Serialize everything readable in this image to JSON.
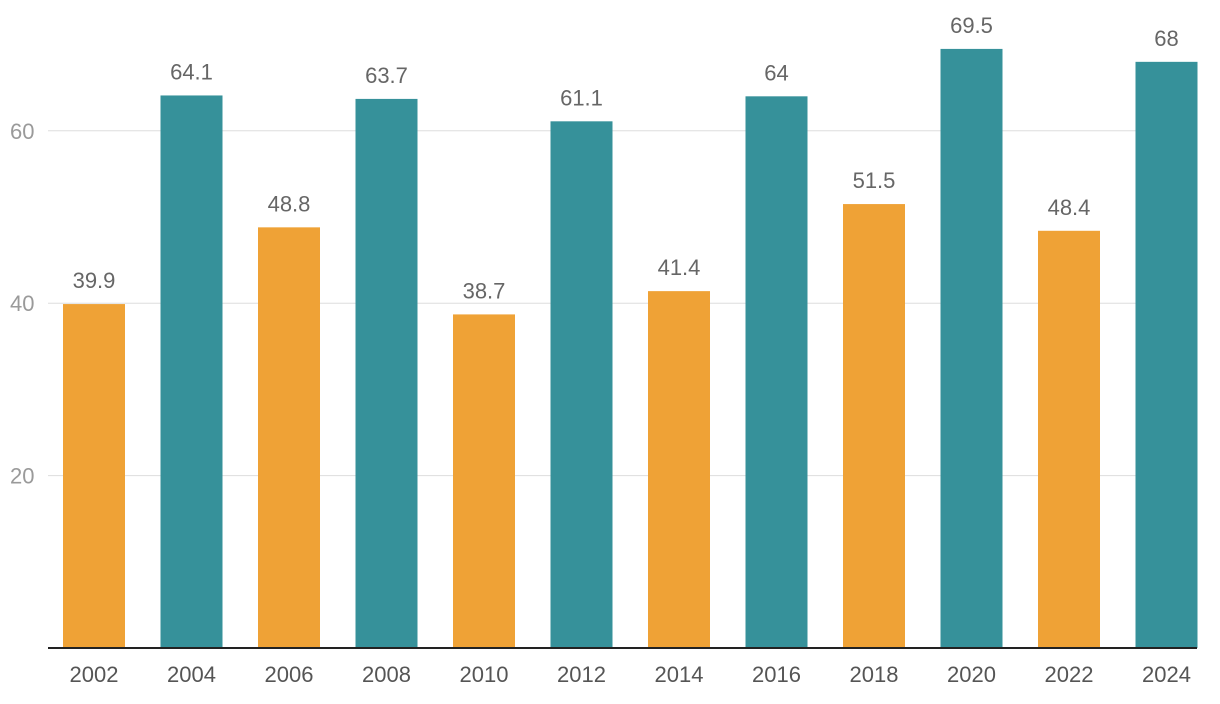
{
  "chart_data": {
    "type": "bar",
    "categories": [
      "2002",
      "2004",
      "2006",
      "2008",
      "2010",
      "2012",
      "2014",
      "2016",
      "2018",
      "2020",
      "2022",
      "2024"
    ],
    "values": [
      39.9,
      64.1,
      48.8,
      63.7,
      38.7,
      61.1,
      41.4,
      64,
      51.5,
      69.5,
      48.4,
      68
    ],
    "value_labels": [
      "39.9",
      "64.1",
      "48.8",
      "63.7",
      "38.7",
      "61.1",
      "41.4",
      "64",
      "51.5",
      "69.5",
      "48.4",
      "68"
    ],
    "bar_colors": [
      "#efa236",
      "#36919a",
      "#efa236",
      "#36919a",
      "#efa236",
      "#36919a",
      "#efa236",
      "#36919a",
      "#efa236",
      "#36919a",
      "#efa236",
      "#36919a"
    ],
    "y_ticks": [
      20,
      40,
      60
    ],
    "y_tick_labels": [
      "20",
      "40",
      "60"
    ],
    "ylim": [
      0,
      75
    ],
    "grid": true,
    "title": "",
    "xlabel": "",
    "ylabel": "",
    "legend": false
  }
}
